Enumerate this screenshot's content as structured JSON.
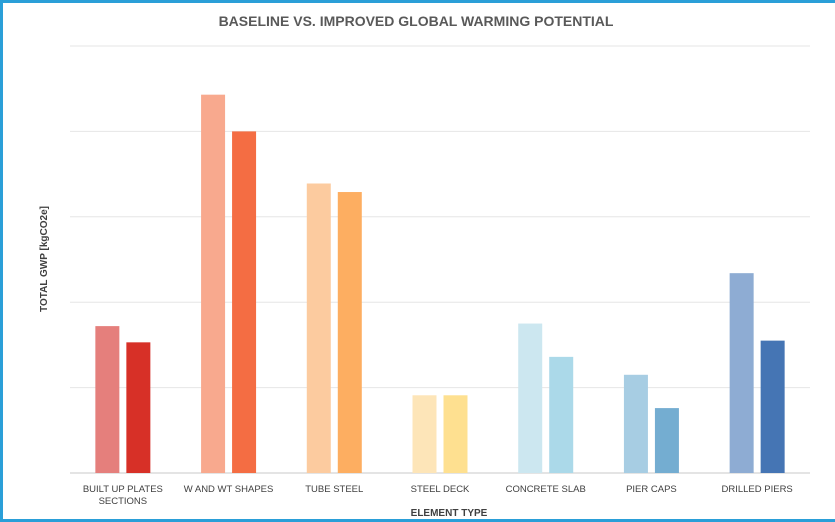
{
  "chart_data": {
    "type": "bar",
    "title": "BASELINE VS. IMPROVED GLOBAL WARMING POTENTIAL",
    "xlabel": "ELEMENT TYPE",
    "ylabel": "TOTAL GWP [kgCO2e]",
    "categories": [
      [
        "BUILT UP PLATES",
        "SECTIONS"
      ],
      [
        "W AND WT SHAPES"
      ],
      [
        "TUBE STEEL"
      ],
      [
        "STEEL DECK"
      ],
      [
        "CONCRETE SLAB"
      ],
      [
        "PIER CAPS"
      ],
      [
        "DRILLED PIERS"
      ]
    ],
    "ylim": [
      0,
      5
    ],
    "y_tick_labels_shown": false,
    "grid": true,
    "legend": "none",
    "series": [
      {
        "values": [
          1.72,
          4.43,
          3.39,
          0.91,
          1.75,
          1.15,
          2.34
        ],
        "colors": [
          "#e57f7c",
          "#f8a98e",
          "#fccb9f",
          "#fde5b8",
          "#cce7f0",
          "#a7cde3",
          "#8eacd3"
        ]
      },
      {
        "values": [
          1.53,
          4.0,
          3.29,
          0.91,
          1.36,
          0.76,
          1.55
        ],
        "colors": [
          "#d73027",
          "#f46d43",
          "#fdae61",
          "#fee090",
          "#abd9e9",
          "#74add1",
          "#4575b4"
        ]
      }
    ]
  }
}
